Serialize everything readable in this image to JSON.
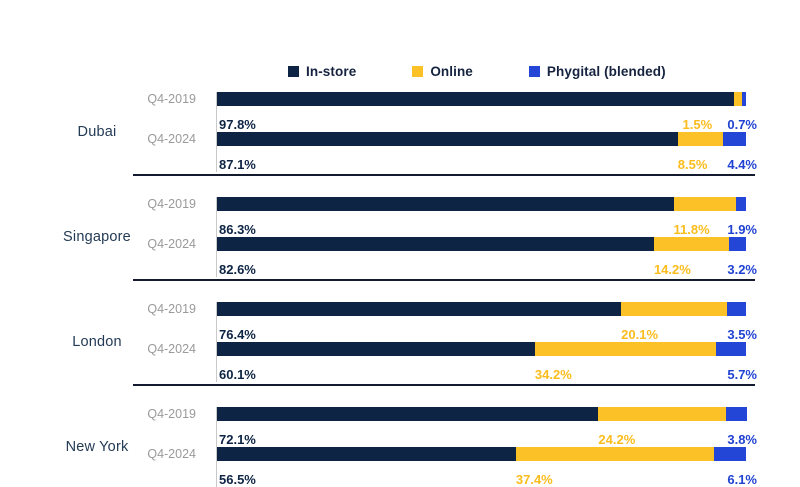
{
  "colors": {
    "in_store": "#0d2444",
    "online": "#fcc127",
    "phygital": "#2346d7",
    "in_store_label": "#0d2444",
    "online_label": "#fbbd1d",
    "phygital_label": "#2143d2",
    "divider": "#151b2e",
    "axis_line": "#c9c9c9",
    "period_label": "#9a9a9a",
    "city_label": "#243b55",
    "legend_text": "#16233f"
  },
  "legend": {
    "items": [
      {
        "label": "In-store",
        "key": "in_store"
      },
      {
        "label": "Online",
        "key": "online"
      },
      {
        "label": "Phygital (blended)",
        "key": "phygital"
      }
    ]
  },
  "chart_data": {
    "type": "bar",
    "variant": "horizontal-100%-stacked",
    "series": [
      "In-store",
      "Online",
      "Phygital (blended)"
    ],
    "unit": "%",
    "xlim": [
      0,
      100
    ],
    "grid": false,
    "legend_position": "top",
    "groups": [
      {
        "label": "Dubai",
        "rows": [
          {
            "period": "Q4-2019",
            "values": [
              97.8,
              1.5,
              0.7
            ]
          },
          {
            "period": "Q4-2024",
            "values": [
              87.1,
              8.5,
              4.4
            ]
          }
        ]
      },
      {
        "label": "Singapore",
        "rows": [
          {
            "period": "Q4-2019",
            "values": [
              86.3,
              11.8,
              1.9
            ]
          },
          {
            "period": "Q4-2024",
            "values": [
              82.6,
              14.2,
              3.2
            ]
          }
        ]
      },
      {
        "label": "London",
        "rows": [
          {
            "period": "Q4-2019",
            "values": [
              76.4,
              20.1,
              3.5
            ]
          },
          {
            "period": "Q4-2024",
            "values": [
              60.1,
              34.2,
              5.7
            ]
          }
        ]
      },
      {
        "label": "New York",
        "rows": [
          {
            "period": "Q4-2019",
            "values": [
              72.1,
              24.2,
              3.8
            ]
          },
          {
            "period": "Q4-2024",
            "values": [
              56.5,
              37.4,
              6.1
            ]
          }
        ]
      }
    ]
  }
}
